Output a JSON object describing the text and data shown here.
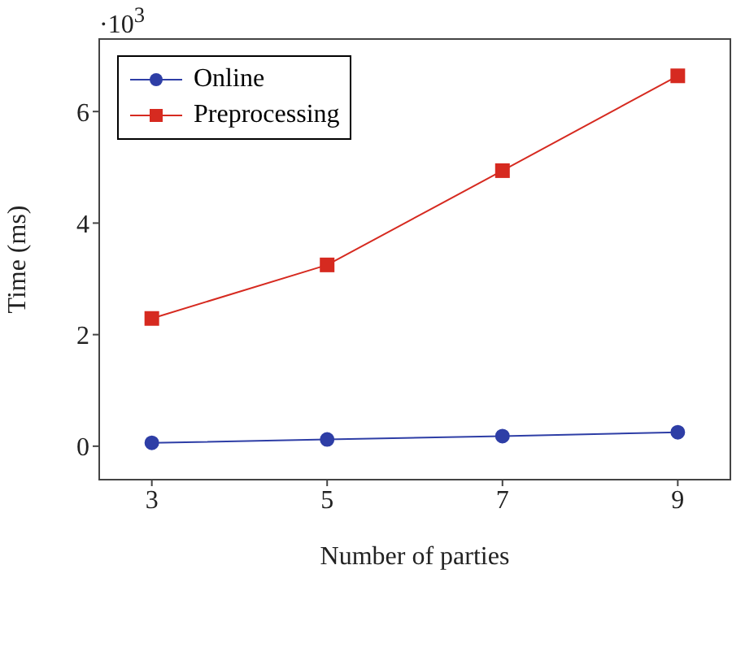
{
  "chart_data": {
    "type": "line",
    "xlabel": "Number of parties",
    "ylabel": "Time (ms)",
    "annotations": [
      "·10$^{3}$"
    ],
    "x": [
      3,
      5,
      7,
      9
    ],
    "series": [
      {
        "name": "Online",
        "color": "#2e3ea6",
        "marker": "circle",
        "values": [
          0.06,
          0.12,
          0.18,
          0.25
        ]
      },
      {
        "name": "Preprocessing",
        "color": "#d62a20",
        "marker": "square",
        "values": [
          2.29,
          3.25,
          4.94,
          6.64
        ]
      }
    ],
    "xlim": [
      2.4,
      9.6
    ],
    "xticks": [
      3,
      5,
      7,
      9
    ],
    "ylim": [
      -0.6,
      7.3
    ],
    "yticks": [
      0,
      2,
      4,
      6
    ],
    "grid": false,
    "legend": "top left",
    "line_style": "solid"
  }
}
